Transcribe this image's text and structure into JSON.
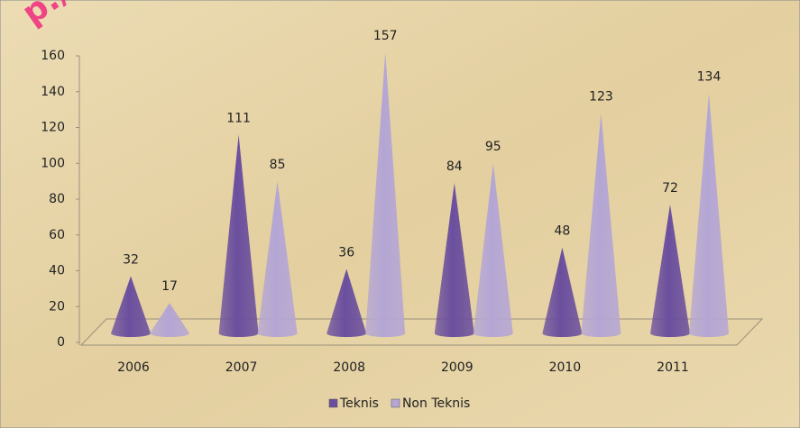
{
  "watermark": "p://papuab",
  "chart_data": {
    "type": "cone",
    "categories": [
      "2006",
      "2007",
      "2008",
      "2009",
      "2010",
      "2011"
    ],
    "series": [
      {
        "name": "Teknis",
        "color": "#6b4f9e",
        "values": [
          32,
          111,
          36,
          84,
          48,
          72
        ]
      },
      {
        "name": "Non Teknis",
        "color": "#b4a6d4",
        "values": [
          17,
          85,
          157,
          95,
          123,
          134
        ]
      }
    ],
    "ylim": [
      0,
      160
    ],
    "yticks": [
      0,
      20,
      40,
      60,
      80,
      100,
      120,
      140,
      160
    ],
    "legend": "bottom"
  }
}
